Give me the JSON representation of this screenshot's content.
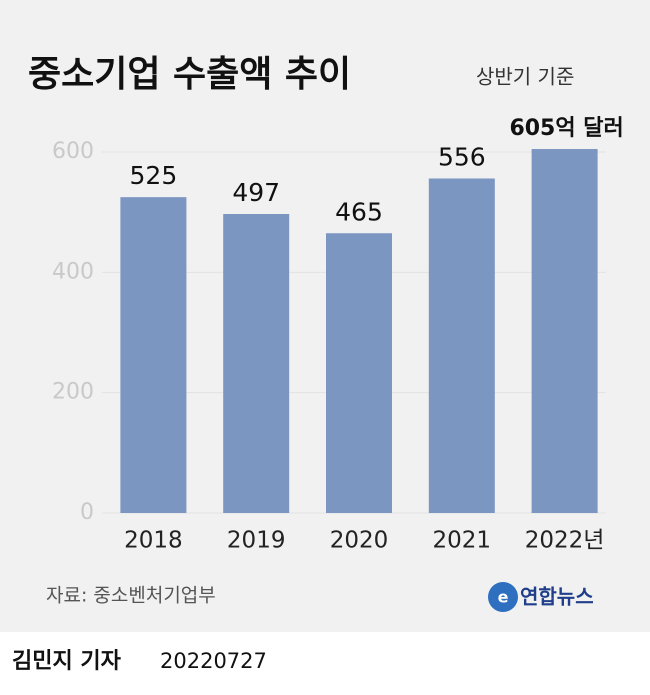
{
  "chart_data": {
    "type": "bar",
    "title": "중소기업 수출액 추이",
    "subtitle": "상반기 기준",
    "categories": [
      "2018",
      "2019",
      "2020",
      "2021",
      "2022년"
    ],
    "values": [
      525,
      497,
      465,
      556,
      605
    ],
    "value_labels": [
      "525",
      "497",
      "465",
      "556",
      "605억 달러"
    ],
    "color": "#7b96c1",
    "ylim": [
      0,
      620
    ],
    "yticks": [
      0,
      200,
      400,
      600
    ],
    "grid": true,
    "source": "자료: 중소벤처기업부",
    "credit": "연합뉴스",
    "reporter": "김민지 기자",
    "date": "20220727"
  }
}
